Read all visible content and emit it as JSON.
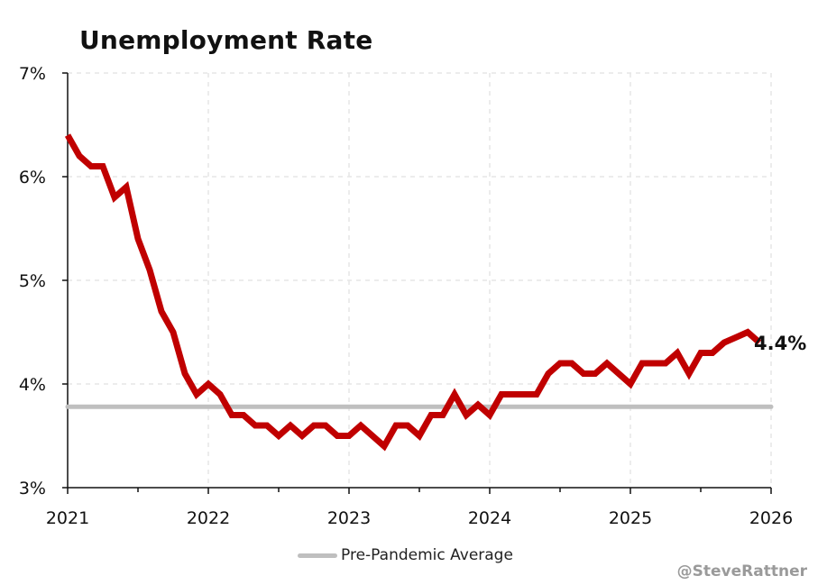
{
  "chart_data": {
    "type": "line",
    "title": "Unemployment Rate",
    "xlabel": "",
    "ylabel": "",
    "x_ticks": [
      "2021",
      "2022",
      "2023",
      "2024",
      "2025",
      "2026"
    ],
    "y_ticks": [
      "3%",
      "4%",
      "5%",
      "6%",
      "7%"
    ],
    "xlim": [
      2021,
      2026
    ],
    "ylim": [
      3,
      7
    ],
    "grid": true,
    "series": [
      {
        "color": "#c00000",
        "x": [
          "2021-01",
          "2021-02",
          "2021-03",
          "2021-04",
          "2021-05",
          "2021-06",
          "2021-07",
          "2021-08",
          "2021-09",
          "2021-10",
          "2021-11",
          "2021-12",
          "2022-01",
          "2022-02",
          "2022-03",
          "2022-04",
          "2022-05",
          "2022-06",
          "2022-07",
          "2022-08",
          "2022-09",
          "2022-10",
          "2022-11",
          "2022-12",
          "2023-01",
          "2023-02",
          "2023-03",
          "2023-04",
          "2023-05",
          "2023-06",
          "2023-07",
          "2023-08",
          "2023-09",
          "2023-10",
          "2023-11",
          "2023-12",
          "2024-01",
          "2024-02",
          "2024-03",
          "2024-04",
          "2024-05",
          "2024-06",
          "2024-07",
          "2024-08",
          "2024-09",
          "2024-10",
          "2024-11",
          "2024-12",
          "2025-01",
          "2025-02",
          "2025-03",
          "2025-04",
          "2025-05",
          "2025-06",
          "2025-07",
          "2025-08",
          "2025-09",
          "2025-10",
          "2025-11",
          "2025-12"
        ],
        "values": [
          6.4,
          6.2,
          6.1,
          6.1,
          5.8,
          5.9,
          5.4,
          5.1,
          4.7,
          4.5,
          4.1,
          3.9,
          4.0,
          3.9,
          3.7,
          3.7,
          3.6,
          3.6,
          3.5,
          3.6,
          3.5,
          3.6,
          3.6,
          3.5,
          3.5,
          3.6,
          3.5,
          3.4,
          3.6,
          3.6,
          3.5,
          3.7,
          3.7,
          3.9,
          3.7,
          3.8,
          3.7,
          3.9,
          3.9,
          3.9,
          3.9,
          4.1,
          4.2,
          4.2,
          4.1,
          4.1,
          4.2,
          4.1,
          4.0,
          4.2,
          4.2,
          4.2,
          4.3,
          4.1,
          4.3,
          4.3,
          4.4,
          4.45,
          4.5,
          4.4
        ]
      },
      {
        "name": "Pre-Pandemic Average",
        "color": "#bfbfbf",
        "value": 3.78
      }
    ],
    "annotations": [
      {
        "text": "4.4%"
      }
    ],
    "legend": {
      "placement": "bottom-center",
      "label": "Pre-Pandemic Average"
    }
  },
  "credit": "@SteveRattner"
}
